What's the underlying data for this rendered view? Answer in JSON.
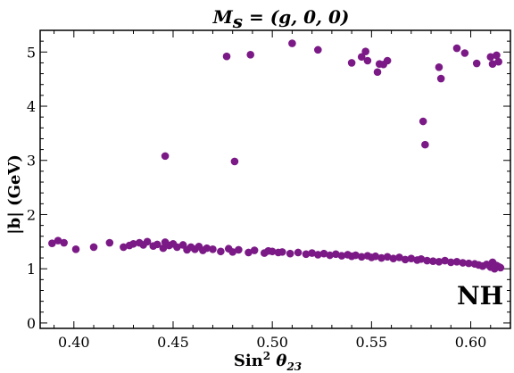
{
  "chart_data": {
    "type": "scatter",
    "title_parts": {
      "lhs": "M",
      "sub": "s",
      "rhs": " = (g, 0, 0)"
    },
    "xlabel_parts": {
      "base": "Sin",
      "sup": "2",
      "theta": " θ",
      "sub": "23"
    },
    "ylabel": "|b| (GeV)",
    "annotation": "NH",
    "xlim": [
      0.383,
      0.62
    ],
    "ylim": [
      -0.1,
      5.4
    ],
    "xticks": [
      0.4,
      0.45,
      0.5,
      0.55,
      0.6
    ],
    "xtick_labels": [
      "0.40",
      "0.45",
      "0.50",
      "0.55",
      "0.60"
    ],
    "yticks": [
      0,
      1,
      2,
      3,
      4,
      5
    ],
    "ytick_labels": [
      "0",
      "1",
      "2",
      "3",
      "4",
      "5"
    ],
    "marker_color": "#7b1a86",
    "points": {
      "x": [
        0.389,
        0.392,
        0.395,
        0.401,
        0.41,
        0.418,
        0.425,
        0.428,
        0.43,
        0.433,
        0.435,
        0.437,
        0.44,
        0.442,
        0.445,
        0.446,
        0.448,
        0.45,
        0.452,
        0.455,
        0.457,
        0.459,
        0.461,
        0.463,
        0.465,
        0.467,
        0.47,
        0.474,
        0.478,
        0.48,
        0.483,
        0.488,
        0.491,
        0.496,
        0.498,
        0.5,
        0.503,
        0.505,
        0.509,
        0.513,
        0.517,
        0.52,
        0.523,
        0.526,
        0.529,
        0.532,
        0.535,
        0.538,
        0.54,
        0.542,
        0.545,
        0.548,
        0.55,
        0.552,
        0.555,
        0.558,
        0.561,
        0.564,
        0.567,
        0.57,
        0.573,
        0.575,
        0.578,
        0.581,
        0.584,
        0.587,
        0.59,
        0.593,
        0.596,
        0.599,
        0.602,
        0.604,
        0.606,
        0.608,
        0.61,
        0.611,
        0.612,
        0.613,
        0.614,
        0.615,
        0.446,
        0.481,
        0.477,
        0.489,
        0.51,
        0.523,
        0.54,
        0.545,
        0.547,
        0.548,
        0.553,
        0.554,
        0.556,
        0.558,
        0.576,
        0.577,
        0.584,
        0.585,
        0.593,
        0.597,
        0.603,
        0.61,
        0.611,
        0.613,
        0.614
      ],
      "y": [
        1.47,
        1.52,
        1.48,
        1.36,
        1.4,
        1.48,
        1.4,
        1.43,
        1.46,
        1.48,
        1.44,
        1.5,
        1.42,
        1.45,
        1.38,
        1.49,
        1.43,
        1.46,
        1.4,
        1.44,
        1.35,
        1.4,
        1.36,
        1.41,
        1.34,
        1.38,
        1.36,
        1.32,
        1.37,
        1.31,
        1.35,
        1.3,
        1.34,
        1.29,
        1.33,
        1.32,
        1.3,
        1.31,
        1.28,
        1.3,
        1.27,
        1.29,
        1.26,
        1.28,
        1.25,
        1.27,
        1.24,
        1.26,
        1.23,
        1.25,
        1.22,
        1.24,
        1.21,
        1.23,
        1.2,
        1.22,
        1.19,
        1.21,
        1.17,
        1.19,
        1.16,
        1.18,
        1.15,
        1.14,
        1.13,
        1.15,
        1.12,
        1.13,
        1.11,
        1.1,
        1.09,
        1.07,
        1.05,
        1.08,
        1.03,
        1.12,
        1.0,
        1.06,
        1.04,
        1.02,
        3.08,
        2.98,
        4.92,
        4.95,
        5.16,
        5.04,
        4.8,
        4.91,
        5.01,
        4.84,
        4.63,
        4.78,
        4.77,
        4.84,
        3.72,
        3.29,
        4.72,
        4.51,
        5.07,
        4.98,
        4.79,
        4.91,
        4.78,
        4.94,
        4.82
      ]
    }
  }
}
